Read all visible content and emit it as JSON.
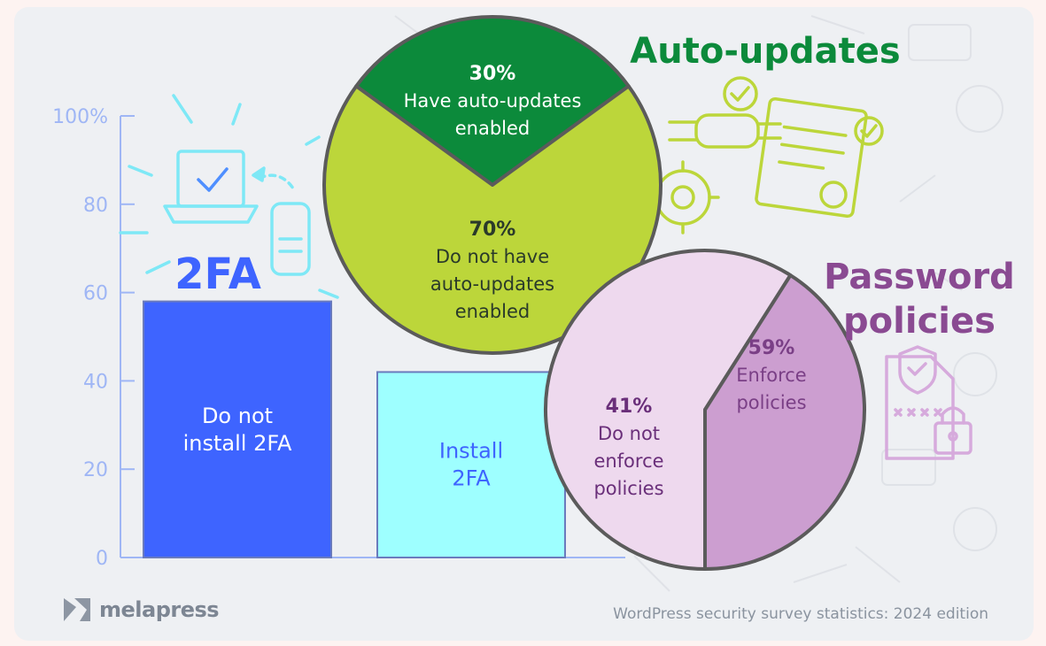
{
  "chart_data": [
    {
      "type": "bar",
      "title": "2FA",
      "categories": [
        "Do not install 2FA",
        "Install 2FA"
      ],
      "category_lines": [
        [
          "Do not",
          "install 2FA"
        ],
        [
          "Install",
          "2FA"
        ]
      ],
      "values": [
        58,
        42
      ],
      "ylim": [
        0,
        100
      ],
      "yticks": [
        0,
        20,
        40,
        60,
        80,
        100
      ],
      "ytick_labels": [
        "0",
        "20",
        "40",
        "60",
        "80",
        "100%"
      ],
      "bar_colors": [
        "#3e64ff",
        "#9effff"
      ],
      "label_colors": [
        "#ffffff",
        "#3e64ff"
      ],
      "title_color": "#3e64ff",
      "axis_color": "#9fb6f5"
    },
    {
      "type": "pie",
      "title": "Auto-updates",
      "slices": [
        {
          "label_lines": [
            "Have auto-updates",
            "enabled"
          ],
          "percent_label": "30%",
          "value": 30,
          "color": "#0c8a3b",
          "text_color": "#ffffff"
        },
        {
          "label_lines": [
            "Do not have",
            "auto-updates",
            "enabled"
          ],
          "percent_label": "70%",
          "value": 70,
          "color": "#bcd63a",
          "text_color": "#2a3a2a"
        }
      ],
      "title_color": "#0c8a3b"
    },
    {
      "type": "pie",
      "title_lines": [
        "Password",
        "policies"
      ],
      "slices": [
        {
          "label_lines": [
            "Enforce",
            "policies"
          ],
          "percent_label": "59%",
          "value": 59,
          "color": "#eed9ee",
          "text_color": "#7a3f86"
        },
        {
          "label_lines": [
            "Do not",
            "enforce",
            "policies"
          ],
          "percent_label": "41%",
          "value": 41,
          "color": "#cc9ed0",
          "text_color": "#6a2f7a"
        }
      ],
      "title_color": "#8a4a92"
    }
  ],
  "footer": {
    "logo_text": "melapress",
    "caption": "WordPress security survey statistics: 2024 edition"
  }
}
